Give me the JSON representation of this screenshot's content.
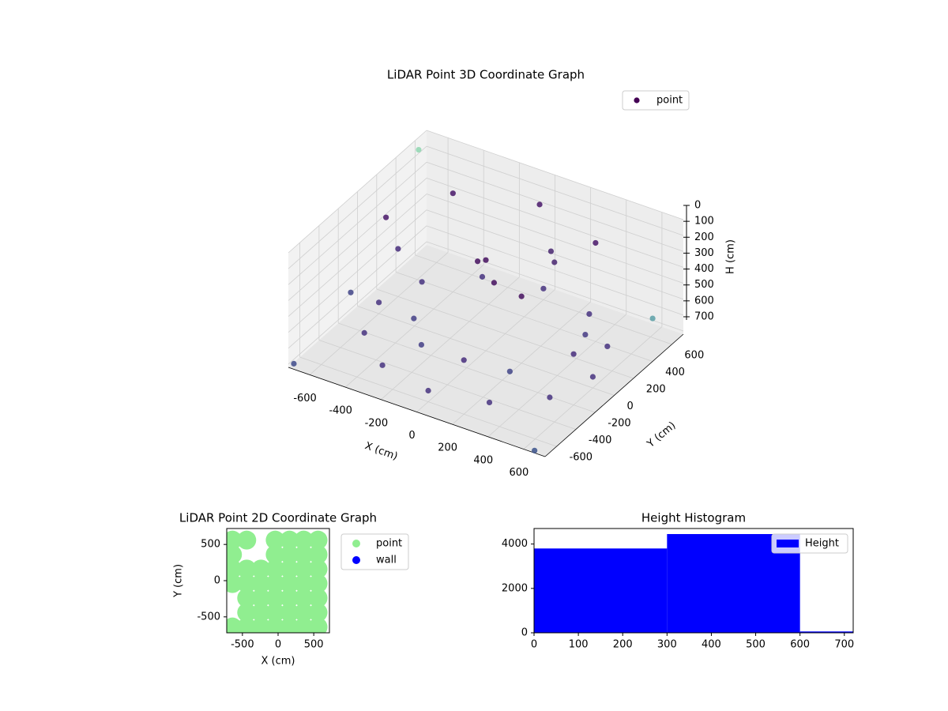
{
  "chart_data": [
    {
      "type": "scatter3d",
      "title": "LiDAR Point 3D Coordinate Graph",
      "xlabel": "X (cm)",
      "ylabel": "Y (cm)",
      "zlabel": "H (cm)",
      "xlim": [
        -720,
        720
      ],
      "ylim": [
        -720,
        720
      ],
      "zlim": [
        0,
        720
      ],
      "xticks": [
        -600,
        -400,
        -200,
        0,
        200,
        400,
        600
      ],
      "yticks": [
        -600,
        -400,
        -200,
        0,
        200,
        400,
        600
      ],
      "zticks": [
        0,
        100,
        200,
        300,
        400,
        500,
        600,
        700
      ],
      "legend": "upper right",
      "grid": true,
      "series": [
        {
          "name": "point",
          "color": "#440154",
          "x": [
            600,
            520,
            300,
            0,
            -300,
            -520,
            -600,
            -520,
            -300,
            0,
            300,
            520,
            400,
            0,
            -400,
            -560,
            0,
            100,
            -100,
            200,
            600,
            -600,
            200,
            -700,
            -700,
            720,
            650,
            -650,
            450,
            150,
            -200,
            350,
            -350,
            250
          ],
          "y": [
            0,
            300,
            520,
            600,
            520,
            300,
            0,
            -300,
            -520,
            -600,
            -520,
            -300,
            400,
            560,
            400,
            0,
            0,
            -100,
            100,
            0,
            -200,
            200,
            -600,
            -700,
            600,
            400,
            -700,
            -200,
            200,
            400,
            -300,
            -400,
            -100,
            250
          ],
          "z": [
            650,
            650,
            650,
            650,
            650,
            650,
            650,
            650,
            650,
            650,
            650,
            650,
            100,
            100,
            100,
            100,
            150,
            200,
            250,
            300,
            400,
            420,
            380,
            700,
            50,
            450,
            720,
            500,
            550,
            250,
            600,
            500,
            600,
            200
          ],
          "colors": [
            "#46337f",
            "#46337f",
            "#46337f",
            "#46337f",
            "#46337f",
            "#46337f",
            "#46337f",
            "#46337f",
            "#46337f",
            "#46337f",
            "#46337f",
            "#46337f",
            "#481668",
            "#481668",
            "#481668",
            "#481668",
            "#440f5e",
            "#440f5e",
            "#440f5e",
            "#440f5e",
            "#472d7b",
            "#472d7b",
            "#472d7b",
            "#3e4a89",
            "#8fd6b0",
            "#5a9fa6",
            "#3b528b",
            "#414487",
            "#443a83",
            "#46246f",
            "#433e85",
            "#414487",
            "#433e85",
            "#46246f"
          ]
        }
      ]
    },
    {
      "type": "scatter",
      "title": "LiDAR Point 2D Coordinate Graph",
      "xlabel": "X (cm)",
      "ylabel": "Y (cm)",
      "xlim": [
        -720,
        720
      ],
      "ylim": [
        -720,
        720
      ],
      "xticks": [
        -500,
        0,
        500
      ],
      "yticks": [
        -500,
        0,
        500
      ],
      "legend": "outside upper right",
      "series": [
        {
          "name": "point",
          "color": "#90ee90",
          "x": [
            -640,
            -440,
            -40,
            160,
            360,
            560,
            -640,
            -40,
            160,
            360,
            560,
            -640,
            -440,
            -240,
            -40,
            160,
            360,
            560,
            -640,
            -440,
            -240,
            -40,
            160,
            360,
            560,
            -440,
            -240,
            -40,
            160,
            360,
            560,
            -440,
            -240,
            -40,
            160,
            360,
            560,
            -640,
            -440,
            -240,
            -40,
            160,
            360,
            560
          ],
          "y": [
            560,
            560,
            560,
            560,
            560,
            560,
            360,
            360,
            360,
            360,
            360,
            160,
            160,
            160,
            160,
            160,
            160,
            160,
            -40,
            -40,
            -40,
            -40,
            -40,
            -40,
            -40,
            -240,
            -240,
            -240,
            -240,
            -240,
            -240,
            -440,
            -440,
            -440,
            -440,
            -440,
            -440,
            -640,
            -640,
            -640,
            -640,
            -640,
            -640,
            -640
          ]
        },
        {
          "name": "wall",
          "color": "#0000ff",
          "x": [],
          "y": []
        }
      ]
    },
    {
      "type": "histogram",
      "title": "Height Histogram",
      "bins": [
        0,
        300,
        600,
        720
      ],
      "xlim": [
        0,
        720
      ],
      "ylim": [
        0,
        4700
      ],
      "xticks": [
        0,
        100,
        200,
        300,
        400,
        500,
        600,
        700
      ],
      "yticks": [
        0,
        2000,
        4000
      ],
      "legend": "upper right",
      "series": [
        {
          "name": "Height",
          "color": "#0000ff",
          "values": [
            3800,
            4450,
            60
          ]
        }
      ]
    }
  ]
}
